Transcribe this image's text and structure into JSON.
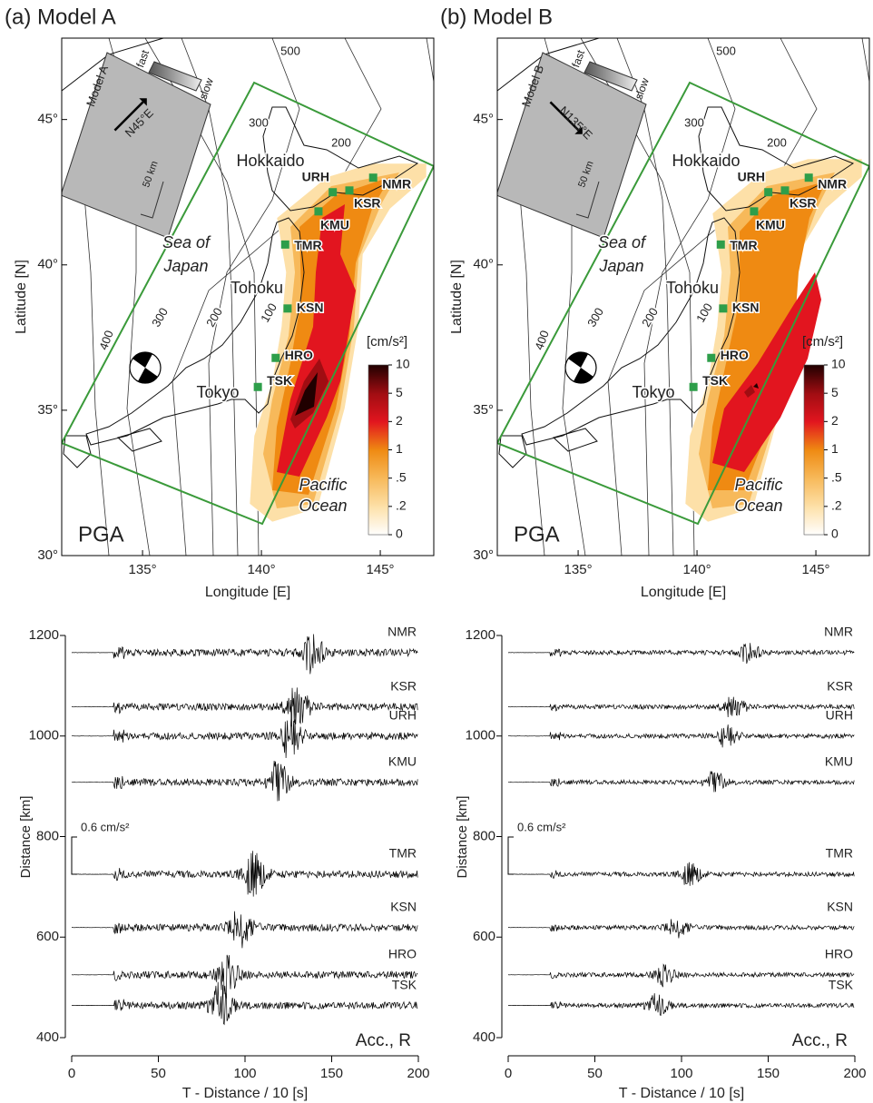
{
  "maps": [
    {
      "title": "(a) Model A",
      "xlim": [
        131.6,
        147.25
      ],
      "ylim": [
        30,
        47.8
      ],
      "xticks": [
        {
          "value": 135,
          "label": "135°"
        },
        {
          "value": 140,
          "label": "140°"
        },
        {
          "value": 145,
          "label": "145°"
        }
      ],
      "yticks": [
        {
          "value": 30,
          "label": "30°"
        },
        {
          "value": 35,
          "label": "35°"
        },
        {
          "value": 40,
          "label": "40°"
        },
        {
          "value": 45,
          "label": "45°"
        }
      ],
      "xlabel": "Longitude [E]",
      "ylabel": "Latitude [N]",
      "label": "PGA",
      "places": [
        "Hokkaido",
        "Sea of",
        "Japan",
        "Tohoku",
        "Tokyo",
        "Pacific",
        "Ocean"
      ],
      "contour_labels": [
        "500",
        "300",
        "200",
        "400",
        "300",
        "200",
        "100"
      ],
      "stations": [
        {
          "name": "NMR",
          "lon": 144.7,
          "lat": 43.0
        },
        {
          "name": "KSR",
          "lon": 143.7,
          "lat": 42.56
        },
        {
          "name": "URH",
          "lon": 143.0,
          "lat": 42.5
        },
        {
          "name": "KMU",
          "lon": 142.4,
          "lat": 41.84
        },
        {
          "name": "TMR",
          "lon": 141.0,
          "lat": 40.7
        },
        {
          "name": "KSN",
          "lon": 141.1,
          "lat": 38.5
        },
        {
          "name": "HRO",
          "lon": 140.6,
          "lat": 36.8
        },
        {
          "name": "TSK",
          "lon": 139.85,
          "lat": 35.8
        }
      ],
      "inset": {
        "model": "Model A",
        "fast": "fast",
        "slow": "slow",
        "direction": {
          "value": 45,
          "label": "N45°E"
        },
        "scale": "50 km"
      },
      "colorbar": {
        "unit": "[cm/s²]",
        "ticks": [
          {
            "value": 10,
            "label": "10"
          },
          {
            "value": 5,
            "label": "5"
          },
          {
            "value": 2,
            "label": "2"
          },
          {
            "value": 1,
            "label": "1"
          },
          {
            "value": 0.5,
            "label": ".5"
          },
          {
            "value": 0.2,
            "label": ".2"
          },
          {
            "value": 0,
            "label": "0"
          }
        ],
        "colors": [
          "#200000",
          "#a00d12",
          "#e2151f",
          "#ef8a12",
          "#f7b95a",
          "#fde0a8",
          "#ffffff"
        ]
      }
    },
    {
      "title": "(b) Model B",
      "xlim": [
        131.6,
        147.25
      ],
      "ylim": [
        30,
        47.8
      ],
      "xticks": [
        {
          "value": 135,
          "label": "135°"
        },
        {
          "value": 140,
          "label": "140°"
        },
        {
          "value": 145,
          "label": "145°"
        }
      ],
      "yticks": [
        {
          "value": 30,
          "label": "30°"
        },
        {
          "value": 35,
          "label": "35°"
        },
        {
          "value": 40,
          "label": "40°"
        },
        {
          "value": 45,
          "label": "45°"
        }
      ],
      "xlabel": "Longitude [E]",
      "ylabel": "Latitude [N]",
      "label": "PGA",
      "places": [
        "Hokkaido",
        "Sea of",
        "Japan",
        "Tohoku",
        "Tokyo",
        "Pacific",
        "Ocean"
      ],
      "contour_labels": [
        "500",
        "300",
        "200",
        "400",
        "300",
        "200",
        "100"
      ],
      "stations": [
        {
          "name": "NMR",
          "lon": 144.7,
          "lat": 43.0
        },
        {
          "name": "KSR",
          "lon": 143.7,
          "lat": 42.56
        },
        {
          "name": "URH",
          "lon": 143.0,
          "lat": 42.5
        },
        {
          "name": "KMU",
          "lon": 142.4,
          "lat": 41.84
        },
        {
          "name": "TMR",
          "lon": 141.0,
          "lat": 40.7
        },
        {
          "name": "KSN",
          "lon": 141.1,
          "lat": 38.5
        },
        {
          "name": "HRO",
          "lon": 140.6,
          "lat": 36.8
        },
        {
          "name": "TSK",
          "lon": 139.85,
          "lat": 35.8
        }
      ],
      "inset": {
        "model": "Model B",
        "fast": "fast",
        "slow": "slow",
        "direction": {
          "value": 135,
          "label": "N135°E"
        },
        "scale": "50 km"
      },
      "colorbar": {
        "unit": "[cm/s²]",
        "ticks": [
          {
            "value": 10,
            "label": "10"
          },
          {
            "value": 5,
            "label": "5"
          },
          {
            "value": 2,
            "label": "2"
          },
          {
            "value": 1,
            "label": "1"
          },
          {
            "value": 0.5,
            "label": ".5"
          },
          {
            "value": 0.2,
            "label": ".2"
          },
          {
            "value": 0,
            "label": "0"
          }
        ],
        "colors": [
          "#200000",
          "#a00d12",
          "#e2151f",
          "#ef8a12",
          "#f7b95a",
          "#fde0a8",
          "#ffffff"
        ]
      }
    }
  ],
  "chart_data": [
    {
      "type": "waveform",
      "xlim": [
        0,
        200
      ],
      "ylim": [
        400,
        1200
      ],
      "xticks": [
        0,
        50,
        100,
        150,
        200
      ],
      "yticks": [
        400,
        600,
        800,
        1000,
        1200
      ],
      "xlabel": "T - Distance / 10 [s]",
      "ylabel": "Distance [km]",
      "annotation": "Acc., R",
      "scale_label": "0.6 cm/s²",
      "color": "#000000",
      "series": [
        {
          "name": "NMR",
          "distance": 1166
        },
        {
          "name": "KSR",
          "distance": 1058
        },
        {
          "name": "URH",
          "distance": 1000
        },
        {
          "name": "KMU",
          "distance": 908
        },
        {
          "name": "TMR",
          "distance": 725
        },
        {
          "name": "KSN",
          "distance": 619
        },
        {
          "name": "HRO",
          "distance": 525
        },
        {
          "name": "TSK",
          "distance": 464
        }
      ]
    },
    {
      "type": "waveform",
      "xlim": [
        0,
        200
      ],
      "ylim": [
        400,
        1200
      ],
      "xticks": [
        0,
        50,
        100,
        150,
        200
      ],
      "yticks": [
        400,
        600,
        800,
        1000,
        1200
      ],
      "xlabel": "T - Distance / 10 [s]",
      "ylabel": "Distance [km]",
      "annotation": "Acc., R",
      "scale_label": "0.6 cm/s²",
      "color": "#000000",
      "series": [
        {
          "name": "NMR",
          "distance": 1166
        },
        {
          "name": "KSR",
          "distance": 1058
        },
        {
          "name": "URH",
          "distance": 1000
        },
        {
          "name": "KMU",
          "distance": 908
        },
        {
          "name": "TMR",
          "distance": 725
        },
        {
          "name": "KSN",
          "distance": 619
        },
        {
          "name": "HRO",
          "distance": 525
        },
        {
          "name": "TSK",
          "distance": 464
        }
      ]
    }
  ]
}
